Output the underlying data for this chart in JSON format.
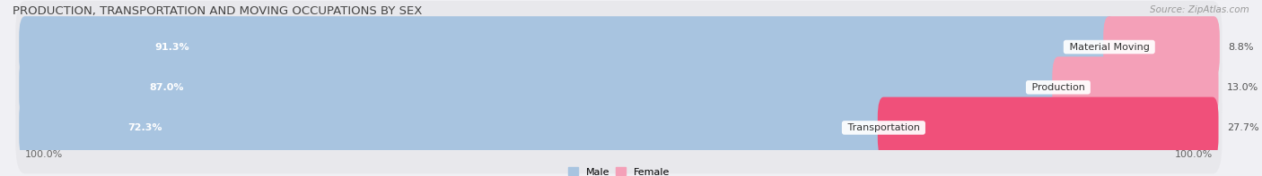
{
  "title": "PRODUCTION, TRANSPORTATION AND MOVING OCCUPATIONS BY SEX",
  "source": "Source: ZipAtlas.com",
  "categories": [
    "Material Moving",
    "Production",
    "Transportation"
  ],
  "male_values": [
    91.3,
    87.0,
    72.3
  ],
  "female_values": [
    8.8,
    13.0,
    27.7
  ],
  "male_color": "#a8c4e0",
  "female_color_row0": "#f4a0b8",
  "female_color_row1": "#f4a0b8",
  "female_color_row2": "#f0507a",
  "row_bg_color": "#e8e8ec",
  "male_label": "Male",
  "female_label": "Female",
  "title_fontsize": 9.5,
  "source_fontsize": 7.5,
  "bar_label_fontsize": 8,
  "cat_label_fontsize": 8,
  "axis_label_fontsize": 8,
  "axis_label_left": "100.0%",
  "axis_label_right": "100.0%",
  "background_color": "#f0f0f4"
}
